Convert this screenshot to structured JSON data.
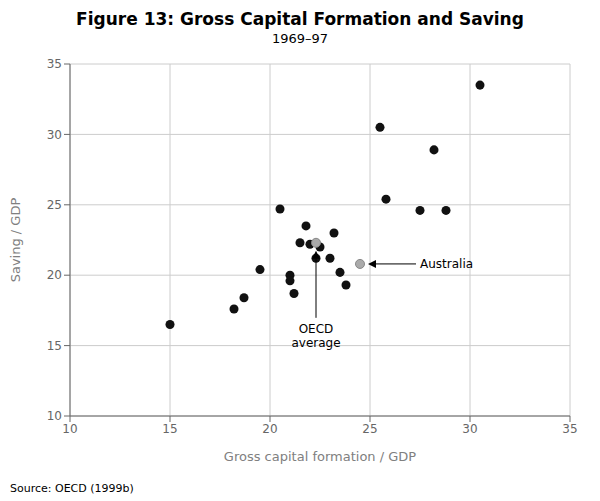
{
  "chart_data": {
    "type": "scatter",
    "title": "Figure 13: Gross Capital Formation and Saving",
    "subtitle": "1969–97",
    "xlabel": "Gross capital formation / GDP",
    "ylabel": "Saving / GDP",
    "source": "Source: OECD (1999b)",
    "xlim": [
      10,
      35
    ],
    "ylim": [
      10,
      35
    ],
    "xticks": [
      10,
      15,
      20,
      25,
      30,
      35
    ],
    "yticks": [
      10,
      15,
      20,
      25,
      30,
      35
    ],
    "grid": true,
    "series": [
      {
        "color": "#111111",
        "x": [
          15.0,
          18.2,
          18.7,
          19.5,
          20.5,
          21.0,
          21.0,
          21.2,
          21.5,
          21.8,
          22.0,
          22.3,
          22.5,
          23.0,
          23.2,
          23.5,
          23.8,
          25.5,
          25.8,
          27.5,
          28.2,
          28.8,
          30.5
        ],
        "values": [
          16.5,
          17.6,
          18.4,
          20.4,
          24.7,
          20.0,
          19.6,
          18.7,
          22.3,
          23.5,
          22.2,
          21.2,
          22.0,
          21.2,
          23.0,
          20.2,
          19.3,
          30.5,
          25.4,
          24.6,
          28.9,
          24.6,
          33.5
        ]
      },
      {
        "color": "#aaaaaa",
        "x": [
          22.3
        ],
        "values": [
          22.3
        ]
      },
      {
        "color": "#aaaaaa",
        "x": [
          24.5
        ],
        "values": [
          20.8
        ]
      }
    ],
    "annotations": [
      {
        "text": "OECD\naverage",
        "x": 22.3,
        "y": 22.3
      },
      {
        "text": "Australia",
        "x": 24.5,
        "y": 20.8
      }
    ]
  }
}
